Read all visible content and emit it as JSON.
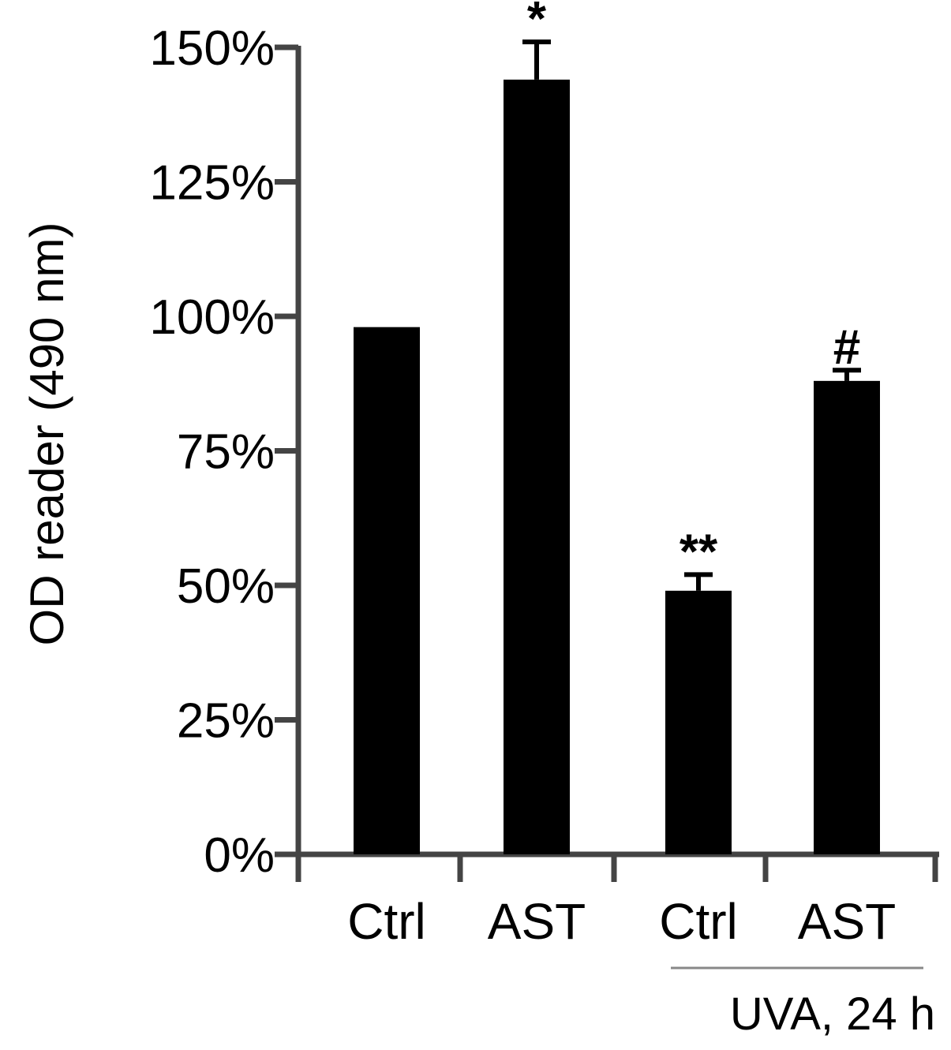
{
  "chart_data": {
    "type": "bar",
    "categories": [
      "Ctrl",
      "AST",
      "Ctrl",
      "AST"
    ],
    "values": [
      98,
      144,
      49,
      88
    ],
    "errors": [
      0,
      7,
      3,
      2
    ],
    "annotations": [
      "",
      "*",
      "**",
      "#"
    ],
    "title": "",
    "xlabel": "",
    "ylabel": "OD reader (490 nm)",
    "ylim": [
      0,
      150
    ],
    "yticks": [
      0,
      25,
      50,
      75,
      100,
      125,
      150
    ],
    "ytick_labels": [
      "0%",
      "25%",
      "50%",
      "75%",
      "100%",
      "125%",
      "150%"
    ],
    "group_label": "UVA, 24 h",
    "grid": false,
    "legend": "none",
    "bar_color": "#000000",
    "axis_color": "#444444",
    "group_line_color": "#888888"
  }
}
